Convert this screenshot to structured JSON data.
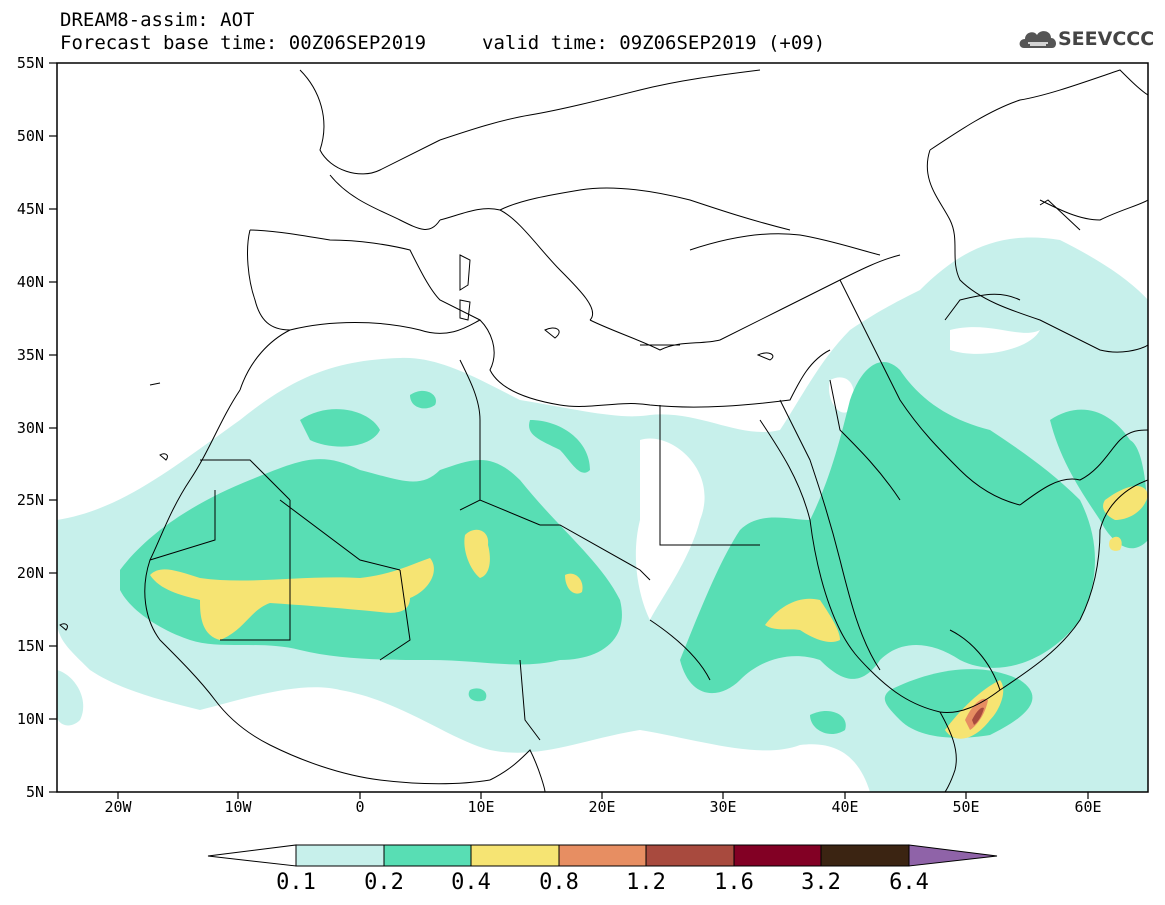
{
  "header": {
    "title": "DREAM8-assim: AOT",
    "base_time": "Forecast base time: 00Z06SEP2019",
    "valid_time": "valid time: 09Z06SEP2019 (+09)",
    "logo_text": "SEEVCCC",
    "logo_icon": "cloud-icon"
  },
  "map": {
    "lon_range": [
      -25,
      65
    ],
    "lat_range": [
      5,
      55
    ],
    "lat_ticks": [
      "55N",
      "50N",
      "45N",
      "40N",
      "35N",
      "30N",
      "25N",
      "20N",
      "15N",
      "10N",
      "5N"
    ],
    "lon_ticks": [
      "20W",
      "10W",
      "0",
      "10E",
      "20E",
      "30E",
      "40E",
      "50E",
      "60E"
    ]
  },
  "colorbar": {
    "labels": [
      "0.1",
      "0.2",
      "0.4",
      "0.8",
      "1.2",
      "1.6",
      "3.2",
      "6.4"
    ],
    "colors": [
      "#ffffff",
      "#c7f0eb",
      "#58deb4",
      "#f6e473",
      "#e78e62",
      "#a84a3e",
      "#820024",
      "#3b2412",
      "#8f63a8"
    ]
  }
}
